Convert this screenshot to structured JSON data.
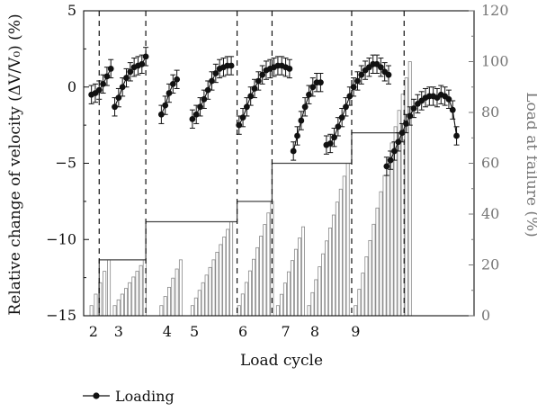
{
  "chart_data": {
    "type": "line",
    "xlabel": "Load cycle",
    "ylabel_left": "Relative change of velocity (ΔV/V₀) (%)",
    "ylabel_right": "Load at failure (%)",
    "ylim_left": [
      -15,
      5
    ],
    "ylim_right": [
      0,
      120
    ],
    "yticks_left": [
      "5",
      "0",
      "−5",
      "−10",
      "−15"
    ],
    "yticks_right": [
      "120",
      "100",
      "80",
      "60",
      "40",
      "20",
      "0"
    ],
    "xticks": [
      "2",
      "3",
      "4",
      "5",
      "6",
      "7",
      "8",
      "9"
    ],
    "legend": {
      "label": "Loading",
      "placement": "bottom-left"
    },
    "cycle_boundaries": [
      2.15,
      3.35,
      5.7,
      6.6,
      8.65,
      10.0
    ],
    "load_envelope": [
      {
        "from": 2.15,
        "to": 3.35,
        "load": 22
      },
      {
        "from": 3.35,
        "to": 5.7,
        "load": 37
      },
      {
        "from": 5.7,
        "to": 6.6,
        "load": 45
      },
      {
        "from": 6.6,
        "to": 8.65,
        "load": 60
      },
      {
        "from": 8.65,
        "to": 10.0,
        "load": 72
      }
    ],
    "load_bars": [
      {
        "cycle": "2",
        "x_start": 1.95,
        "x_end": 2.4,
        "peak": 22
      },
      {
        "cycle": "3",
        "x_start": 2.55,
        "x_end": 3.32,
        "peak": 22
      },
      {
        "cycle": "4",
        "x_start": 3.75,
        "x_end": 4.25,
        "peak": 22
      },
      {
        "cycle": "5",
        "x_start": 4.55,
        "x_end": 5.55,
        "peak": 37
      },
      {
        "cycle": "6",
        "x_start": 5.75,
        "x_end": 6.6,
        "peak": 45
      },
      {
        "cycle": "7",
        "x_start": 6.75,
        "x_end": 7.4,
        "peak": 35
      },
      {
        "cycle": "8",
        "x_start": 7.55,
        "x_end": 8.55,
        "peak": 60
      },
      {
        "cycle": "9",
        "x_start": 8.75,
        "x_end": 10.15,
        "peak": 100
      }
    ],
    "series": [
      {
        "name": "Loading",
        "segments": [
          {
            "x": [
              1.95,
              2.05,
              2.15,
              2.25,
              2.35,
              2.45
            ],
            "y": [
              -0.5,
              -0.4,
              -0.2,
              0.2,
              0.7,
              1.2
            ]
          },
          {
            "x": [
              2.55,
              2.65,
              2.75,
              2.85,
              2.95,
              3.05,
              3.15,
              3.25,
              3.35
            ],
            "y": [
              -1.3,
              -0.7,
              0.0,
              0.6,
              1.0,
              1.3,
              1.4,
              1.5,
              2.0
            ]
          },
          {
            "x": [
              3.75,
              3.85,
              3.95,
              4.05,
              4.15
            ],
            "y": [
              -1.8,
              -1.2,
              -0.4,
              0.2,
              0.5
            ]
          },
          {
            "x": [
              4.55,
              4.65,
              4.75,
              4.85,
              4.95,
              5.05,
              5.15,
              5.25,
              5.35,
              5.45,
              5.55
            ],
            "y": [
              -2.1,
              -1.8,
              -1.3,
              -0.8,
              -0.2,
              0.4,
              0.9,
              1.2,
              1.3,
              1.4,
              1.4
            ]
          },
          {
            "x": [
              5.75,
              5.85,
              5.95,
              6.05,
              6.15,
              6.25,
              6.35,
              6.45,
              6.55,
              6.65,
              6.75,
              6.85,
              6.95,
              7.05
            ],
            "y": [
              -2.5,
              -2.0,
              -1.3,
              -0.6,
              -0.1,
              0.4,
              0.8,
              1.1,
              1.2,
              1.3,
              1.4,
              1.4,
              1.3,
              1.2
            ]
          },
          {
            "x": [
              7.15,
              7.25,
              7.35,
              7.45,
              7.55,
              7.65,
              7.75,
              7.85
            ],
            "y": [
              -4.2,
              -3.2,
              -2.2,
              -1.3,
              -0.5,
              0.0,
              0.3,
              0.3
            ]
          },
          {
            "x": [
              8.0,
              8.1,
              8.2,
              8.3,
              8.4,
              8.5,
              8.6,
              8.7,
              8.8,
              8.9,
              9.0,
              9.1,
              9.2,
              9.3,
              9.4,
              9.5,
              9.6
            ],
            "y": [
              -3.8,
              -3.7,
              -3.3,
              -2.6,
              -2.0,
              -1.3,
              -0.6,
              0.0,
              0.4,
              0.8,
              1.1,
              1.3,
              1.5,
              1.5,
              1.3,
              1.0,
              0.8
            ]
          },
          {
            "x": [
              9.55,
              9.65,
              9.75,
              9.85,
              9.95,
              10.05,
              10.15,
              10.25,
              10.35,
              10.45,
              10.55,
              10.65,
              10.75,
              10.85,
              10.95,
              11.05,
              11.15,
              11.25,
              11.35
            ],
            "y": [
              -5.2,
              -4.8,
              -4.2,
              -3.6,
              -3.0,
              -2.4,
              -1.9,
              -1.4,
              -1.1,
              -0.9,
              -0.7,
              -0.6,
              -0.6,
              -0.7,
              -0.5,
              -0.6,
              -0.8,
              -1.5,
              -3.2
            ]
          }
        ],
        "error": 0.6
      }
    ]
  }
}
